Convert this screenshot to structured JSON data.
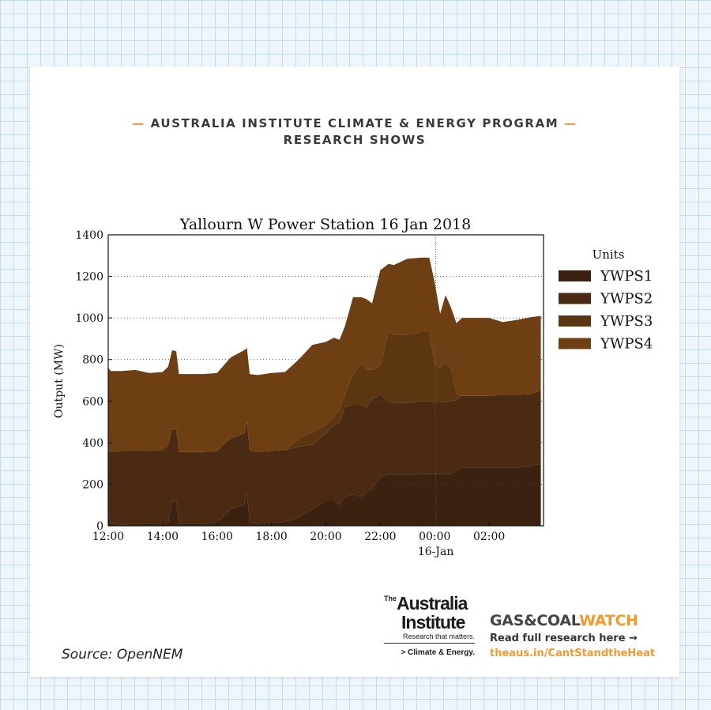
{
  "header": {
    "line1": "AUSTRALIA INSTITUTE CLIMATE & ENERGY PROGRAM",
    "line2": "RESEARCH SHOWS",
    "dash": "—",
    "accent_color": "#f29a2e"
  },
  "source": "Source: OpenNEM",
  "logo": {
    "the": "The",
    "name_line1": "Australia",
    "name_line2": "Institute",
    "tagline": "Research that matters.",
    "program": "> Climate & Energy."
  },
  "gcw": {
    "brand_part1": "GAS&COAL",
    "brand_part2": "WATCH",
    "read": "Read full research here →",
    "link": "theaus.in/CantStandtheHeat"
  },
  "chart_data": {
    "type": "area",
    "stacked": true,
    "title": "Yallourn W Power Station 16 Jan 2018",
    "ylabel": "Output (MW)",
    "xlabel": "",
    "ylim": [
      0,
      1400
    ],
    "xlim_hours": [
      12,
      28
    ],
    "yticks": [
      "0",
      "200",
      "400",
      "600",
      "800",
      "1000",
      "1200",
      "1400"
    ],
    "xticks": [
      "12:00",
      "14:00",
      "16:00",
      "18:00",
      "20:00",
      "22:00",
      "00:00",
      "02:00"
    ],
    "x_sublabel": "16-Jan",
    "grid": "dotted horizontal",
    "legend_title": "Units",
    "legend_position": "right",
    "x": [
      12.0,
      12.1,
      12.5,
      13.0,
      13.5,
      14.0,
      14.2,
      14.35,
      14.5,
      14.6,
      15.0,
      15.5,
      16.0,
      16.5,
      17.0,
      17.1,
      17.2,
      17.5,
      18.0,
      18.5,
      19.0,
      19.5,
      20.0,
      20.3,
      20.5,
      20.7,
      21.0,
      21.3,
      21.5,
      21.7,
      22.0,
      22.3,
      22.5,
      23.0,
      23.5,
      23.8,
      24.0,
      24.2,
      24.4,
      24.6,
      24.8,
      25.0,
      25.5,
      26.0,
      26.5,
      27.0,
      27.5,
      27.9
    ],
    "series": [
      {
        "name": "YWPS1",
        "color": "#3b2210",
        "values": [
          50,
          10,
          5,
          10,
          10,
          10,
          15,
          120,
          115,
          10,
          10,
          10,
          15,
          80,
          100,
          160,
          15,
          10,
          15,
          20,
          40,
          80,
          120,
          120,
          100,
          140,
          150,
          140,
          160,
          180,
          230,
          250,
          245,
          245,
          248,
          248,
          250,
          250,
          250,
          250,
          265,
          280,
          280,
          280,
          280,
          280,
          285,
          300
        ]
      },
      {
        "name": "YWPS2",
        "color": "#4a2a12",
        "values": [
          310,
          345,
          355,
          355,
          350,
          355,
          370,
          345,
          350,
          345,
          345,
          345,
          345,
          340,
          345,
          340,
          345,
          345,
          345,
          345,
          340,
          310,
          325,
          365,
          395,
          430,
          430,
          440,
          410,
          430,
          400,
          350,
          345,
          345,
          352,
          352,
          345,
          350,
          345,
          350,
          340,
          345,
          345,
          345,
          350,
          350,
          348,
          350
        ]
      },
      {
        "name": "YWPS3",
        "color": "#5c3511",
        "values": [
          0,
          0,
          0,
          0,
          0,
          0,
          0,
          0,
          0,
          0,
          0,
          0,
          0,
          0,
          0,
          0,
          0,
          0,
          0,
          0,
          40,
          60,
          40,
          40,
          60,
          60,
          150,
          200,
          180,
          140,
          140,
          330,
          330,
          330,
          330,
          330,
          180,
          160,
          190,
          160,
          30,
          0,
          0,
          0,
          0,
          0,
          0,
          0
        ]
      },
      {
        "name": "YWPS4",
        "color": "#6e3f12",
        "values": [
          400,
          390,
          385,
          385,
          375,
          375,
          380,
          380,
          375,
          375,
          375,
          375,
          375,
          390,
          400,
          355,
          370,
          370,
          375,
          375,
          380,
          420,
          400,
          380,
          340,
          330,
          370,
          320,
          340,
          320,
          460,
          330,
          335,
          365,
          360,
          360,
          395,
          260,
          325,
          290,
          340,
          375,
          375,
          375,
          350,
          360,
          370,
          360
        ]
      }
    ]
  }
}
